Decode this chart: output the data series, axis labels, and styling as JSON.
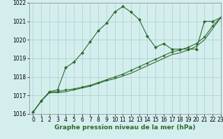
{
  "x": [
    0,
    1,
    2,
    3,
    4,
    5,
    6,
    7,
    8,
    9,
    10,
    11,
    12,
    13,
    14,
    15,
    16,
    17,
    18,
    19,
    20,
    21,
    22,
    23
  ],
  "line1": [
    1016.1,
    1016.7,
    1017.2,
    1017.3,
    1018.5,
    1018.8,
    1019.3,
    1019.9,
    1020.5,
    1020.9,
    1021.5,
    1021.8,
    1021.5,
    1021.1,
    1020.2,
    1019.6,
    1019.8,
    1019.5,
    1019.5,
    1019.5,
    1019.5,
    1021.0,
    1021.0,
    1021.2
  ],
  "line2": [
    1016.1,
    1016.7,
    1017.2,
    1017.2,
    1017.3,
    1017.35,
    1017.45,
    1017.55,
    1017.7,
    1017.85,
    1018.0,
    1018.15,
    1018.35,
    1018.55,
    1018.75,
    1018.95,
    1019.15,
    1019.35,
    1019.45,
    1019.6,
    1019.8,
    1020.15,
    1020.75,
    1021.2
  ],
  "line3": [
    1016.1,
    1016.7,
    1017.15,
    1017.15,
    1017.2,
    1017.3,
    1017.4,
    1017.5,
    1017.65,
    1017.8,
    1017.9,
    1018.05,
    1018.2,
    1018.4,
    1018.6,
    1018.8,
    1019.0,
    1019.2,
    1019.3,
    1019.45,
    1019.65,
    1020.0,
    1020.6,
    1021.2
  ],
  "ylim": [
    1016,
    1022
  ],
  "xlim": [
    -0.5,
    23
  ],
  "yticks": [
    1016,
    1017,
    1018,
    1019,
    1020,
    1021,
    1022
  ],
  "xticks": [
    0,
    1,
    2,
    3,
    4,
    5,
    6,
    7,
    8,
    9,
    10,
    11,
    12,
    13,
    14,
    15,
    16,
    17,
    18,
    19,
    20,
    21,
    22,
    23
  ],
  "xlabel": "Graphe pression niveau de la mer (hPa)",
  "line_color": "#2d6a2d",
  "bg_color": "#d4eeee",
  "grid_color": "#aacece",
  "marker": "D",
  "markersize": 2.0,
  "linewidth": 0.8,
  "xlabel_fontsize": 6.5,
  "tick_fontsize": 5.5
}
